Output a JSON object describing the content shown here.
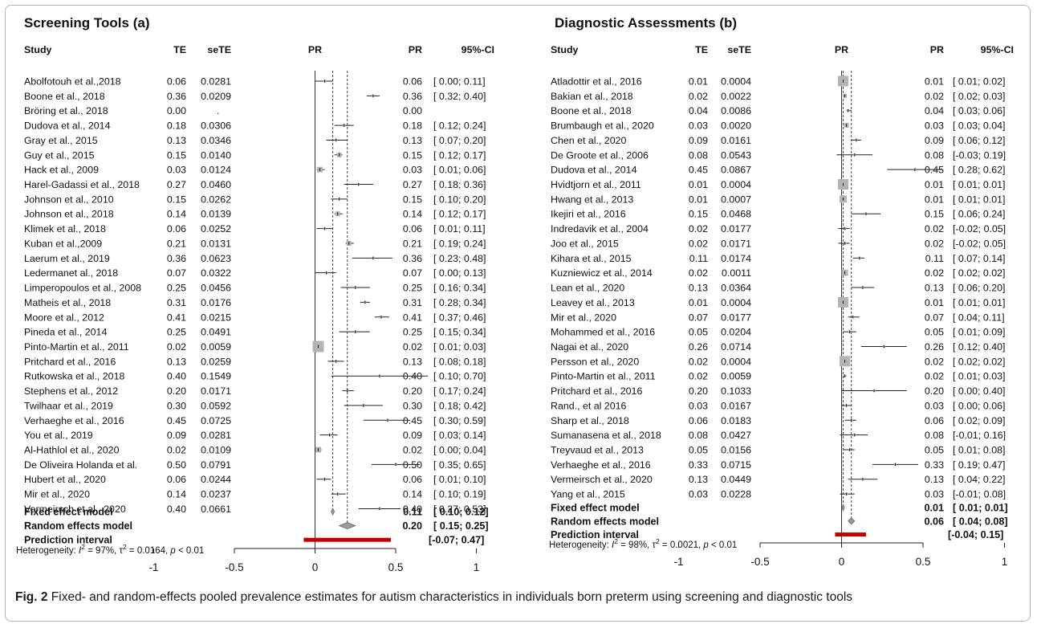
{
  "chart_data": [
    {
      "type": "forest",
      "title": "Screening Tools (a)",
      "columns": {
        "study": "Study",
        "te": "TE",
        "sete": "seTE",
        "plot": "PR",
        "pr": "PR",
        "ci": "95%-CI"
      },
      "xaxis": {
        "ticks": [
          "-1",
          "-0.5",
          "0",
          "0.5",
          "1"
        ],
        "range": [
          -1,
          1
        ]
      },
      "reference_lines": {
        "null": 0,
        "fixed": 0.11,
        "random": 0.2
      },
      "studies": [
        {
          "study": "Abolfotouh et al.,2018",
          "te": "0.06",
          "sete": "0.0281",
          "pr": "0.06",
          "ci": "[ 0.00; 0.11]",
          "est": 0.06,
          "lo": 0.0,
          "hi": 0.11
        },
        {
          "study": "Boone et al., 2018",
          "te": "0.36",
          "sete": "0.0209",
          "pr": "0.36",
          "ci": "[ 0.32; 0.40]",
          "est": 0.36,
          "lo": 0.32,
          "hi": 0.4
        },
        {
          "study": "Bröring et al., 2018",
          "te": "0.00",
          "sete": ".",
          "pr": "0.00",
          "ci": "",
          "est": null,
          "lo": null,
          "hi": null
        },
        {
          "study": "Dudova et al., 2014",
          "te": "0.18",
          "sete": "0.0306",
          "pr": "0.18",
          "ci": "[ 0.12; 0.24]",
          "est": 0.18,
          "lo": 0.12,
          "hi": 0.24
        },
        {
          "study": "Gray et al., 2015",
          "te": "0.13",
          "sete": "0.0346",
          "pr": "0.13",
          "ci": "[ 0.07; 0.20]",
          "est": 0.13,
          "lo": 0.07,
          "hi": 0.2
        },
        {
          "study": "Guy et al., 2015",
          "te": "0.15",
          "sete": "0.0140",
          "pr": "0.15",
          "ci": "[ 0.12; 0.17]",
          "est": 0.15,
          "lo": 0.12,
          "hi": 0.17
        },
        {
          "study": "Hack et al., 2009",
          "te": "0.03",
          "sete": "0.0124",
          "pr": "0.03",
          "ci": "[ 0.01; 0.06]",
          "est": 0.03,
          "lo": 0.01,
          "hi": 0.06
        },
        {
          "study": "Harel-Gadassi et al., 2018",
          "te": "0.27",
          "sete": "0.0460",
          "pr": "0.27",
          "ci": "[ 0.18; 0.36]",
          "est": 0.27,
          "lo": 0.18,
          "hi": 0.36
        },
        {
          "study": "Johnson et al., 2010",
          "te": "0.15",
          "sete": "0.0262",
          "pr": "0.15",
          "ci": "[ 0.10; 0.20]",
          "est": 0.15,
          "lo": 0.1,
          "hi": 0.2
        },
        {
          "study": "Johnson et al., 2018",
          "te": "0.14",
          "sete": "0.0139",
          "pr": "0.14",
          "ci": "[ 0.12; 0.17]",
          "est": 0.14,
          "lo": 0.12,
          "hi": 0.17
        },
        {
          "study": "Klimek et al., 2018",
          "te": "0.06",
          "sete": "0.0252",
          "pr": "0.06",
          "ci": "[ 0.01; 0.11]",
          "est": 0.06,
          "lo": 0.01,
          "hi": 0.11
        },
        {
          "study": "Kuban et al.,2009",
          "te": "0.21",
          "sete": "0.0131",
          "pr": "0.21",
          "ci": "[ 0.19; 0.24]",
          "est": 0.21,
          "lo": 0.19,
          "hi": 0.24
        },
        {
          "study": "Laerum et al., 2019",
          "te": "0.36",
          "sete": "0.0623",
          "pr": "0.36",
          "ci": "[ 0.23; 0.48]",
          "est": 0.36,
          "lo": 0.23,
          "hi": 0.48
        },
        {
          "study": "Ledermanet al., 2018",
          "te": "0.07",
          "sete": "0.0322",
          "pr": "0.07",
          "ci": "[ 0.00; 0.13]",
          "est": 0.07,
          "lo": 0.0,
          "hi": 0.13
        },
        {
          "study": "Limperopoulos et al., 2008",
          "te": "0.25",
          "sete": "0.0456",
          "pr": "0.25",
          "ci": "[ 0.16; 0.34]",
          "est": 0.25,
          "lo": 0.16,
          "hi": 0.34
        },
        {
          "study": "Matheis et al., 2018",
          "te": "0.31",
          "sete": "0.0176",
          "pr": "0.31",
          "ci": "[ 0.28; 0.34]",
          "est": 0.31,
          "lo": 0.28,
          "hi": 0.34
        },
        {
          "study": "Moore et al., 2012",
          "te": "0.41",
          "sete": "0.0215",
          "pr": "0.41",
          "ci": "[ 0.37; 0.46]",
          "est": 0.41,
          "lo": 0.37,
          "hi": 0.46
        },
        {
          "study": "Pineda et al., 2014",
          "te": "0.25",
          "sete": "0.0491",
          "pr": "0.25",
          "ci": "[ 0.15; 0.34]",
          "est": 0.25,
          "lo": 0.15,
          "hi": 0.34
        },
        {
          "study": "Pinto-Martin et al., 2011",
          "te": "0.02",
          "sete": "0.0059",
          "pr": "0.02",
          "ci": "[ 0.01; 0.03]",
          "est": 0.02,
          "lo": 0.01,
          "hi": 0.03
        },
        {
          "study": "Pritchard et al., 2016",
          "te": "0.13",
          "sete": "0.0259",
          "pr": "0.13",
          "ci": "[ 0.08; 0.18]",
          "est": 0.13,
          "lo": 0.08,
          "hi": 0.18
        },
        {
          "study": "Rutkowska et al., 2018",
          "te": "0.40",
          "sete": "0.1549",
          "pr": "0.40",
          "ci": "[ 0.10; 0.70]",
          "est": 0.4,
          "lo": 0.1,
          "hi": 0.7
        },
        {
          "study": "Stephens et al., 2012",
          "te": "0.20",
          "sete": "0.0171",
          "pr": "0.20",
          "ci": "[ 0.17; 0.24]",
          "est": 0.2,
          "lo": 0.17,
          "hi": 0.24
        },
        {
          "study": "Twilhaar et al., 2019",
          "te": "0.30",
          "sete": "0.0592",
          "pr": "0.30",
          "ci": "[ 0.18; 0.42]",
          "est": 0.3,
          "lo": 0.18,
          "hi": 0.42
        },
        {
          "study": "Verhaeghe et al., 2016",
          "te": "0.45",
          "sete": "0.0725",
          "pr": "0.45",
          "ci": "[ 0.30; 0.59]",
          "est": 0.45,
          "lo": 0.3,
          "hi": 0.59
        },
        {
          "study": "You et al., 2019",
          "te": "0.09",
          "sete": "0.0281",
          "pr": "0.09",
          "ci": "[ 0.03; 0.14]",
          "est": 0.09,
          "lo": 0.03,
          "hi": 0.14
        },
        {
          "study": "Al-Hathlol et al., 2020",
          "te": "0.02",
          "sete": "0.0109",
          "pr": "0.02",
          "ci": "[ 0.00; 0.04]",
          "est": 0.02,
          "lo": 0.0,
          "hi": 0.04
        },
        {
          "study": "De Oliveira Holanda et al.",
          "te": "0.50",
          "sete": "0.0791",
          "pr": "0.50",
          "ci": "[ 0.35; 0.65]",
          "est": 0.5,
          "lo": 0.35,
          "hi": 0.65
        },
        {
          "study": "Hubert et al., 2020",
          "te": "0.06",
          "sete": "0.0244",
          "pr": "0.06",
          "ci": "[ 0.01; 0.10]",
          "est": 0.06,
          "lo": 0.01,
          "hi": 0.1
        },
        {
          "study": "Mir et al., 2020",
          "te": "0.14",
          "sete": "0.0237",
          "pr": "0.14",
          "ci": "[ 0.10; 0.19]",
          "est": 0.14,
          "lo": 0.1,
          "hi": 0.19
        },
        {
          "study": "Vermeirsch et al., 2020",
          "te": "0.40",
          "sete": "0.0661",
          "pr": "0.40",
          "ci": "[ 0.27; 0.53]",
          "est": 0.4,
          "lo": 0.27,
          "hi": 0.53
        }
      ],
      "summary": [
        {
          "label": "Fixed effect model",
          "pr": "0.11",
          "ci": "[ 0.10; 0.12]",
          "est": 0.11,
          "lo": 0.1,
          "hi": 0.12
        },
        {
          "label": "Random effects model",
          "pr": "0.20",
          "ci": "[ 0.15; 0.25]",
          "est": 0.2,
          "lo": 0.15,
          "hi": 0.25
        },
        {
          "label": "Prediction interval",
          "pr": "",
          "ci": "[-0.07; 0.47]",
          "est": null,
          "lo": -0.07,
          "hi": 0.47
        }
      ],
      "heterogeneity": {
        "prefix": "Heterogeneity: ",
        "i2_label": "I",
        "i2_value": " = 97%, ",
        "tau2_label": "τ",
        "tau2_value": " = 0.0164, ",
        "p_label": "p",
        "p_value": " < 0.01"
      }
    },
    {
      "type": "forest",
      "title": "Diagnostic Assessments (b)",
      "columns": {
        "study": "Study",
        "te": "TE",
        "sete": "seTE",
        "plot": "PR",
        "pr": "PR",
        "ci": "95%-CI"
      },
      "xaxis": {
        "ticks": [
          "-1",
          "-0.5",
          "0",
          "0.5",
          "1"
        ],
        "range": [
          -1,
          1
        ]
      },
      "reference_lines": {
        "null": 0,
        "fixed": 0.01,
        "random": 0.06
      },
      "studies": [
        {
          "study": "Atladottir et al., 2016",
          "te": "0.01",
          "sete": "0.0004",
          "pr": "0.01",
          "ci": "[ 0.01; 0.02]",
          "est": 0.01,
          "lo": 0.01,
          "hi": 0.02
        },
        {
          "study": "Bakian et al., 2018",
          "te": "0.02",
          "sete": "0.0022",
          "pr": "0.02",
          "ci": "[ 0.02; 0.03]",
          "est": 0.02,
          "lo": 0.02,
          "hi": 0.03
        },
        {
          "study": "Boone et al., 2018",
          "te": "0.04",
          "sete": "0.0086",
          "pr": "0.04",
          "ci": "[ 0.03; 0.06]",
          "est": 0.04,
          "lo": 0.03,
          "hi": 0.06
        },
        {
          "study": "Brumbaugh et al., 2020",
          "te": "0.03",
          "sete": "0.0020",
          "pr": "0.03",
          "ci": "[ 0.03; 0.04]",
          "est": 0.03,
          "lo": 0.03,
          "hi": 0.04
        },
        {
          "study": "Chen et al., 2020",
          "te": "0.09",
          "sete": "0.0161",
          "pr": "0.09",
          "ci": "[ 0.06; 0.12]",
          "est": 0.09,
          "lo": 0.06,
          "hi": 0.12
        },
        {
          "study": "De Groote et al., 2006",
          "te": "0.08",
          "sete": "0.0543",
          "pr": "0.08",
          "ci": "[-0.03; 0.19]",
          "est": 0.08,
          "lo": -0.03,
          "hi": 0.19
        },
        {
          "study": "Dudova et al., 2014",
          "te": "0.45",
          "sete": "0.0867",
          "pr": "0.45",
          "ci": "[ 0.28; 0.62]",
          "est": 0.45,
          "lo": 0.28,
          "hi": 0.62
        },
        {
          "study": "Hvidtjorn et al., 2011",
          "te": "0.01",
          "sete": "0.0004",
          "pr": "0.01",
          "ci": "[ 0.01; 0.01]",
          "est": 0.01,
          "lo": 0.01,
          "hi": 0.01
        },
        {
          "study": "Hwang et al., 2013",
          "te": "0.01",
          "sete": "0.0007",
          "pr": "0.01",
          "ci": "[ 0.01; 0.01]",
          "est": 0.01,
          "lo": 0.01,
          "hi": 0.01
        },
        {
          "study": "Ikejiri et al., 2016",
          "te": "0.15",
          "sete": "0.0468",
          "pr": "0.15",
          "ci": "[ 0.06; 0.24]",
          "est": 0.15,
          "lo": 0.06,
          "hi": 0.24
        },
        {
          "study": "Indredavik et al., 2004",
          "te": "0.02",
          "sete": "0.0177",
          "pr": "0.02",
          "ci": "[-0.02; 0.05]",
          "est": 0.02,
          "lo": -0.02,
          "hi": 0.05
        },
        {
          "study": "Joo et al., 2015",
          "te": "0.02",
          "sete": "0.0171",
          "pr": "0.02",
          "ci": "[-0.02; 0.05]",
          "est": 0.02,
          "lo": -0.02,
          "hi": 0.05
        },
        {
          "study": "Kihara et al., 2015",
          "te": "0.11",
          "sete": "0.0174",
          "pr": "0.11",
          "ci": "[ 0.07; 0.14]",
          "est": 0.11,
          "lo": 0.07,
          "hi": 0.14
        },
        {
          "study": "Kuzniewicz et al., 2014",
          "te": "0.02",
          "sete": "0.0011",
          "pr": "0.02",
          "ci": "[ 0.02; 0.02]",
          "est": 0.02,
          "lo": 0.02,
          "hi": 0.02
        },
        {
          "study": "Lean et al., 2020",
          "te": "0.13",
          "sete": "0.0364",
          "pr": "0.13",
          "ci": "[ 0.06; 0.20]",
          "est": 0.13,
          "lo": 0.06,
          "hi": 0.2
        },
        {
          "study": "Leavey et al., 2013",
          "te": "0.01",
          "sete": "0.0004",
          "pr": "0.01",
          "ci": "[ 0.01; 0.01]",
          "est": 0.01,
          "lo": 0.01,
          "hi": 0.01
        },
        {
          "study": "Mir et al., 2020",
          "te": "0.07",
          "sete": "0.0177",
          "pr": "0.07",
          "ci": "[ 0.04; 0.11]",
          "est": 0.07,
          "lo": 0.04,
          "hi": 0.11
        },
        {
          "study": "Mohammed et al., 2016",
          "te": "0.05",
          "sete": "0.0204",
          "pr": "0.05",
          "ci": "[ 0.01; 0.09]",
          "est": 0.05,
          "lo": 0.01,
          "hi": 0.09
        },
        {
          "study": "Nagai et al., 2020",
          "te": "0.26",
          "sete": "0.0714",
          "pr": "0.26",
          "ci": "[ 0.12; 0.40]",
          "est": 0.26,
          "lo": 0.12,
          "hi": 0.4
        },
        {
          "study": "Persson et al., 2020",
          "te": "0.02",
          "sete": "0.0004",
          "pr": "0.02",
          "ci": "[ 0.02; 0.02]",
          "est": 0.02,
          "lo": 0.02,
          "hi": 0.02
        },
        {
          "study": "Pinto-Martin et al., 2011",
          "te": "0.02",
          "sete": "0.0059",
          "pr": "0.02",
          "ci": "[ 0.01; 0.03]",
          "est": 0.02,
          "lo": 0.01,
          "hi": 0.03
        },
        {
          "study": "Pritchard et al., 2016",
          "te": "0.20",
          "sete": "0.1033",
          "pr": "0.20",
          "ci": "[ 0.00; 0.40]",
          "est": 0.2,
          "lo": 0.0,
          "hi": 0.4
        },
        {
          "study": "Rand., et al 2016",
          "te": "0.03",
          "sete": "0.0167",
          "pr": "0.03",
          "ci": "[ 0.00; 0.06]",
          "est": 0.03,
          "lo": 0.0,
          "hi": 0.06
        },
        {
          "study": "Sharp et al., 2018",
          "te": "0.06",
          "sete": "0.0183",
          "pr": "0.06",
          "ci": "[ 0.02; 0.09]",
          "est": 0.06,
          "lo": 0.02,
          "hi": 0.09
        },
        {
          "study": "Sumanasena et al., 2018",
          "te": "0.08",
          "sete": "0.0427",
          "pr": "0.08",
          "ci": "[-0.01; 0.16]",
          "est": 0.08,
          "lo": -0.01,
          "hi": 0.16
        },
        {
          "study": "Treyvaud et al., 2013",
          "te": "0.05",
          "sete": "0.0156",
          "pr": "0.05",
          "ci": "[ 0.01; 0.08]",
          "est": 0.05,
          "lo": 0.01,
          "hi": 0.08
        },
        {
          "study": "Verhaeghe et al., 2016",
          "te": "0.33",
          "sete": "0.0715",
          "pr": "0.33",
          "ci": "[ 0.19; 0.47]",
          "est": 0.33,
          "lo": 0.19,
          "hi": 0.47
        },
        {
          "study": "Vermeirsch et al., 2020",
          "te": "0.13",
          "sete": "0.0449",
          "pr": "0.13",
          "ci": "[ 0.04; 0.22]",
          "est": 0.13,
          "lo": 0.04,
          "hi": 0.22
        },
        {
          "study": "Yang et al., 2015",
          "te": "0.03",
          "sete": "0.0228",
          "pr": "0.03",
          "ci": "[-0.01; 0.08]",
          "est": 0.03,
          "lo": -0.01,
          "hi": 0.08
        }
      ],
      "summary": [
        {
          "label": "Fixed effect model",
          "pr": "0.01",
          "ci": "[ 0.01; 0.01]",
          "est": 0.01,
          "lo": 0.01,
          "hi": 0.01
        },
        {
          "label": "Random effects model",
          "pr": "0.06",
          "ci": "[ 0.04; 0.08]",
          "est": 0.06,
          "lo": 0.04,
          "hi": 0.08
        },
        {
          "label": "Prediction interval",
          "pr": "",
          "ci": "[-0.04; 0.15]",
          "est": null,
          "lo": -0.04,
          "hi": 0.15
        }
      ],
      "heterogeneity": {
        "prefix": "Heterogeneity: ",
        "i2_label": "I",
        "i2_value": " = 98%, ",
        "tau2_label": "τ",
        "tau2_value": " = 0.0021, ",
        "p_label": "p",
        "p_value": " < 0.01"
      }
    }
  ],
  "caption": {
    "label": "Fig. 2",
    "text": " Fixed- and random-effects pooled prevalence estimates for autism characteristics in individuals born preterm using screening and diagnostic tools"
  },
  "colors": {
    "prediction_interval": "#c00000",
    "weight_box": "#b3b3b3",
    "diamond": "#9a9a9a",
    "ink": "#111111"
  }
}
